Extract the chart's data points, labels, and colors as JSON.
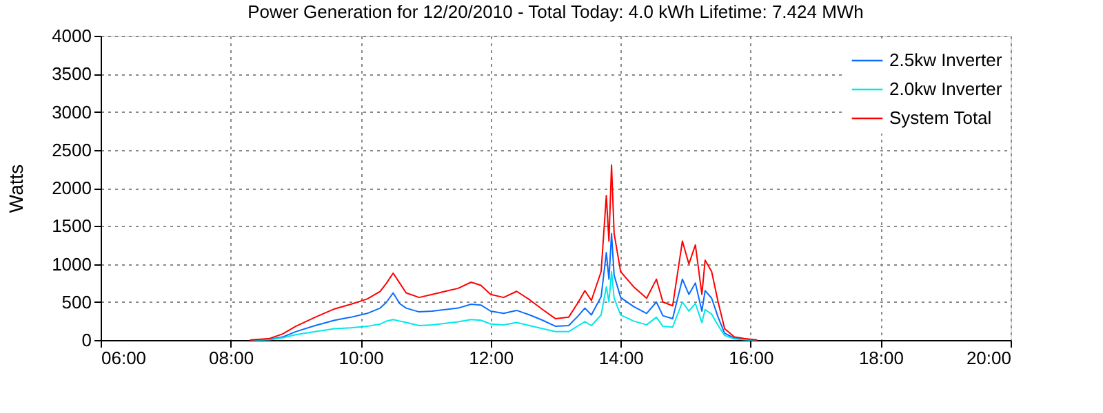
{
  "chart_data": {
    "type": "line",
    "title": "Power Generation for 12/20/2010 - Total Today: 4.0 kWh   Lifetime: 7.424 MWh",
    "ylabel": "Watts",
    "x": [
      8.3,
      8.6,
      8.8,
      9.0,
      9.3,
      9.6,
      9.85,
      10.1,
      10.3,
      10.4,
      10.5,
      10.6,
      10.7,
      10.9,
      11.1,
      11.3,
      11.5,
      11.7,
      11.85,
      12.0,
      12.2,
      12.4,
      12.6,
      12.8,
      13.0,
      13.2,
      13.35,
      13.45,
      13.55,
      13.7,
      13.78,
      13.82,
      13.86,
      13.9,
      14.0,
      14.2,
      14.4,
      14.55,
      14.65,
      14.8,
      14.95,
      15.05,
      15.15,
      15.25,
      15.3,
      15.4,
      15.5,
      15.6,
      15.75,
      15.9,
      16.1
    ],
    "series": [
      {
        "name": "2.5kw Inverter",
        "color": "#0a6cff",
        "values": [
          0,
          10,
          40,
          110,
          190,
          260,
          300,
          350,
          420,
          500,
          620,
          480,
          420,
          370,
          380,
          400,
          420,
          470,
          460,
          380,
          350,
          390,
          330,
          260,
          180,
          190,
          320,
          420,
          330,
          570,
          1150,
          800,
          1400,
          850,
          560,
          440,
          350,
          500,
          320,
          280,
          800,
          600,
          750,
          380,
          650,
          550,
          300,
          90,
          25,
          10,
          0
        ]
      },
      {
        "name": "2.0kw Inverter",
        "color": "#00e8e8",
        "values": [
          0,
          5,
          30,
          70,
          110,
          150,
          160,
          180,
          210,
          250,
          270,
          250,
          230,
          190,
          200,
          220,
          240,
          270,
          260,
          210,
          200,
          230,
          190,
          150,
          110,
          110,
          190,
          240,
          190,
          330,
          700,
          500,
          900,
          550,
          330,
          250,
          200,
          300,
          180,
          170,
          500,
          380,
          480,
          230,
          400,
          340,
          190,
          60,
          15,
          5,
          0
        ]
      },
      {
        "name": "System Total",
        "color": "#ff0000",
        "values": [
          0,
          20,
          80,
          180,
          300,
          410,
          470,
          540,
          640,
          750,
          880,
          750,
          620,
          560,
          600,
          640,
          680,
          760,
          720,
          600,
          560,
          640,
          530,
          400,
          280,
          300,
          500,
          650,
          520,
          900,
          1900,
          1300,
          2300,
          1400,
          900,
          700,
          550,
          800,
          500,
          450,
          1300,
          1000,
          1250,
          600,
          1050,
          900,
          500,
          150,
          40,
          20,
          0
        ]
      }
    ],
    "xlim": [
      6,
      20
    ],
    "xticks": [
      {
        "value": 6,
        "label": "06:00"
      },
      {
        "value": 8,
        "label": "08:00"
      },
      {
        "value": 10,
        "label": "10:00"
      },
      {
        "value": 12,
        "label": "12:00"
      },
      {
        "value": 14,
        "label": "14:00"
      },
      {
        "value": 16,
        "label": "16:00"
      },
      {
        "value": 18,
        "label": "18:00"
      },
      {
        "value": 20,
        "label": "20:00"
      }
    ],
    "ylim": [
      0,
      4000
    ],
    "yticks": [
      0,
      500,
      1000,
      1500,
      2000,
      2500,
      3000,
      3500,
      4000
    ],
    "grid": true,
    "legend": "top right",
    "marker": "none",
    "line_style": "solid"
  }
}
